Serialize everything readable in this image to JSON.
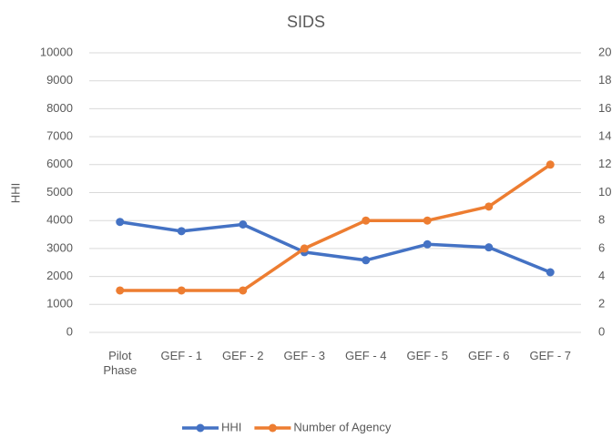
{
  "chart_data": {
    "type": "line",
    "title": "SIDS",
    "y_label": "HHI",
    "categories": [
      "Pilot Phase",
      "GEF - 1",
      "GEF - 2",
      "GEF - 3",
      "GEF - 4",
      "GEF - 5",
      "GEF - 6",
      "GEF - 7"
    ],
    "series": [
      {
        "name": "HHI",
        "color": "#4472c4",
        "values": [
          3950,
          3620,
          3860,
          2870,
          2580,
          3150,
          3040,
          2150
        ]
      },
      {
        "name": "Number of Agency",
        "color": "#ed7d31",
        "axis": "y2",
        "values": [
          3,
          3,
          3,
          6,
          8,
          8,
          9,
          12
        ]
      }
    ],
    "ylim": [
      0,
      10000
    ],
    "yticks": [
      0,
      1000,
      2000,
      3000,
      4000,
      5000,
      6000,
      7000,
      8000,
      9000,
      10000
    ],
    "y2lim": [
      0,
      20
    ],
    "y2ticks": [
      0,
      2,
      4,
      6,
      8,
      10,
      12,
      14,
      16,
      18,
      20
    ],
    "grid": true,
    "legend": "bottom"
  }
}
